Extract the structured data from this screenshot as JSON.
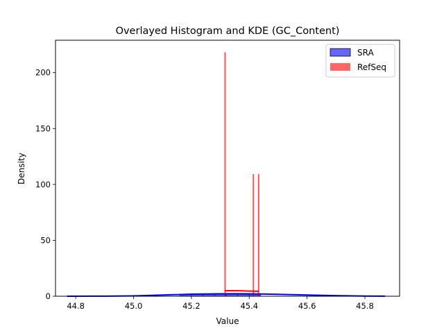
{
  "chart_data": {
    "type": "histogram",
    "title": "Overlayed Histogram and KDE (GC_Content)",
    "xlabel": "Value",
    "ylabel": "Density",
    "xlim": [
      44.73,
      45.92
    ],
    "ylim": [
      0,
      229
    ],
    "xticks": [
      44.8,
      45.0,
      45.2,
      45.4,
      45.6,
      45.8
    ],
    "xtick_labels": [
      "44.8",
      "45.0",
      "45.2",
      "45.4",
      "45.6",
      "45.8"
    ],
    "yticks": [
      0,
      50,
      100,
      150,
      200
    ],
    "ytick_labels": [
      "0",
      "50",
      "100",
      "150",
      "200"
    ],
    "grid": false,
    "legend_position": "top-right",
    "series": [
      {
        "name": "SRA",
        "color": "#0000ff",
        "hist_bins": [
          {
            "x0": 45.16,
            "x1": 45.2,
            "density": 2.0
          },
          {
            "x0": 45.2,
            "x1": 45.24,
            "density": 1.5
          },
          {
            "x0": 45.24,
            "x1": 45.28,
            "density": 1.5
          },
          {
            "x0": 45.28,
            "x1": 45.32,
            "density": 1.6
          },
          {
            "x0": 45.32,
            "x1": 45.36,
            "density": 1.5
          },
          {
            "x0": 45.36,
            "x1": 45.4,
            "density": 1.4
          },
          {
            "x0": 45.4,
            "x1": 45.44,
            "density": 1.3
          }
        ],
        "kde": {
          "x": [
            44.77,
            44.9,
            45.0,
            45.1,
            45.2,
            45.3,
            45.35,
            45.4,
            45.5,
            45.6,
            45.7,
            45.8,
            45.87
          ],
          "y": [
            0.02,
            0.1,
            0.35,
            1.05,
            1.85,
            2.2,
            2.25,
            2.15,
            1.7,
            1.1,
            0.55,
            0.18,
            0.05
          ]
        }
      },
      {
        "name": "RefSeq",
        "color": "#ff0000",
        "hist_bins": [
          {
            "x0": 45.315,
            "x1": 45.318,
            "density": 218
          },
          {
            "x0": 45.413,
            "x1": 45.416,
            "density": 109
          },
          {
            "x0": 45.431,
            "x1": 45.434,
            "density": 109
          }
        ],
        "kde": {
          "x": [
            45.315,
            45.34,
            45.37,
            45.4,
            45.434
          ],
          "y": [
            4.9,
            5.0,
            4.9,
            4.6,
            4.4
          ]
        }
      }
    ]
  }
}
